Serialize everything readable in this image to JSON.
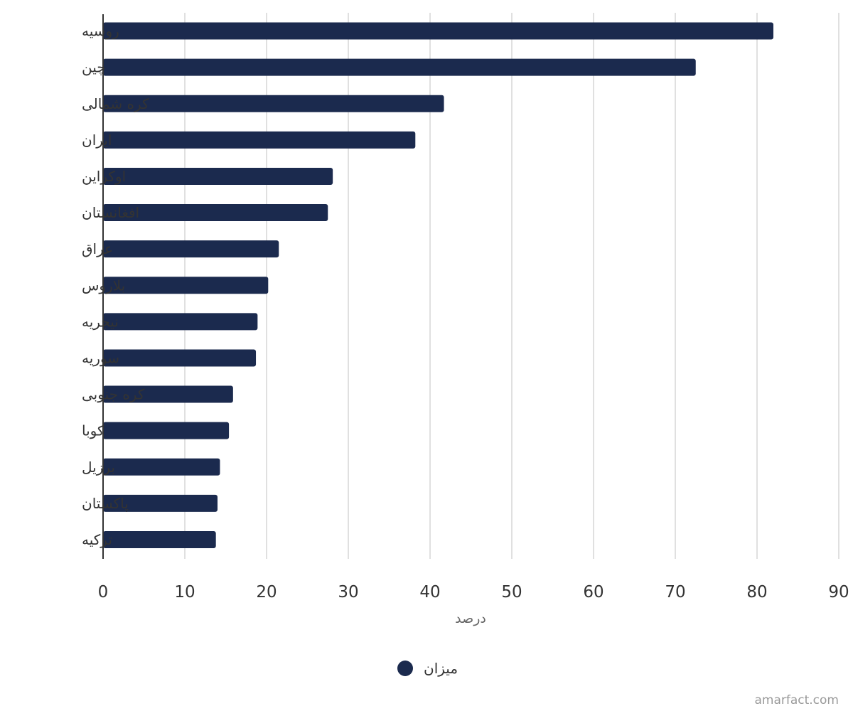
{
  "chart_data": {
    "type": "bar",
    "orientation": "horizontal",
    "categories": [
      "روسیه",
      "چین",
      "کره شمالی",
      "ایران",
      "اوکراین",
      "افغانستان",
      "عراق",
      "بلاروس",
      "نیجریه",
      "سوریه",
      "کره جنوبی",
      "کوبا",
      "برزیل",
      "پاکستان",
      "ترکیه"
    ],
    "series": [
      {
        "name": "میزان",
        "color": "#1b2a4e",
        "values": [
          82,
          72.5,
          41.7,
          38.2,
          28.1,
          27.5,
          21.5,
          20.2,
          18.9,
          18.7,
          15.9,
          15.4,
          14.3,
          14.0,
          13.8
        ]
      }
    ],
    "xlabel": "درصد",
    "ylabel": "",
    "xlim": [
      0,
      90
    ],
    "xticks": [
      0,
      10,
      20,
      30,
      40,
      50,
      60,
      70,
      80,
      90
    ],
    "grid": true,
    "legend_position": "bottom-center",
    "credit": "amarfact.com"
  }
}
